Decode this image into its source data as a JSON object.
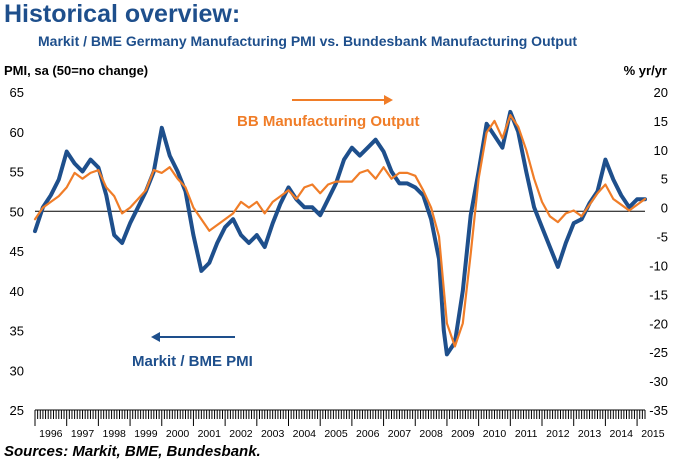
{
  "header": {
    "title": "Historical overview:",
    "subtitle": "Markit / BME Germany Manufacturing PMI vs. Bundesbank Manufacturing Output"
  },
  "footer": {
    "source": "Sources: Markit, BME, Bundesbank."
  },
  "colors": {
    "pmi": "#1e4f8c",
    "output": "#f07d28",
    "title": "#1e4f8c"
  },
  "chart_data": {
    "type": "line",
    "title": "Markit / BME Germany Manufacturing PMI vs. Bundesbank Manufacturing Output",
    "ylabel_left": "PMI, sa (50=no change)",
    "ylabel_right": "% yr/yr",
    "ylim_left": [
      25,
      65
    ],
    "ylim_right": [
      -35,
      20
    ],
    "yticks_left": [
      25,
      30,
      35,
      40,
      45,
      50,
      55,
      60,
      65
    ],
    "yticks_right": [
      -35,
      -30,
      -25,
      -20,
      -15,
      -10,
      -5,
      0,
      5,
      10,
      15,
      20
    ],
    "x_labels": [
      "1996",
      "1997",
      "1998",
      "1999",
      "2000",
      "2001",
      "2002",
      "2003",
      "2004",
      "2005",
      "2006",
      "2007",
      "2008",
      "2009",
      "2010",
      "2011",
      "2012",
      "2013",
      "2014",
      "2015"
    ],
    "x_range": [
      1996.0,
      2015.25
    ],
    "reference_line": {
      "axis": "left",
      "value": 50
    },
    "series": [
      {
        "name": "Markit / BME PMI",
        "axis": "left",
        "label": "Markit / BME PMI",
        "arrow": "left",
        "x": [
          1996.0,
          1996.25,
          1996.5,
          1996.75,
          1997.0,
          1997.25,
          1997.5,
          1997.75,
          1998.0,
          1998.25,
          1998.5,
          1998.75,
          1999.0,
          1999.25,
          1999.5,
          1999.75,
          2000.0,
          2000.25,
          2000.5,
          2000.75,
          2001.0,
          2001.25,
          2001.5,
          2001.75,
          2002.0,
          2002.25,
          2002.5,
          2002.75,
          2003.0,
          2003.25,
          2003.5,
          2003.75,
          2004.0,
          2004.25,
          2004.5,
          2004.75,
          2005.0,
          2005.25,
          2005.5,
          2005.75,
          2006.0,
          2006.25,
          2006.5,
          2006.75,
          2007.0,
          2007.25,
          2007.5,
          2007.75,
          2008.0,
          2008.25,
          2008.5,
          2008.75,
          2008.9,
          2009.0,
          2009.25,
          2009.5,
          2009.75,
          2010.0,
          2010.25,
          2010.5,
          2010.75,
          2011.0,
          2011.25,
          2011.5,
          2011.75,
          2012.0,
          2012.25,
          2012.5,
          2012.75,
          2013.0,
          2013.25,
          2013.5,
          2013.75,
          2014.0,
          2014.25,
          2014.5,
          2014.75,
          2015.0,
          2015.25
        ],
        "values": [
          47.5,
          50.5,
          52.0,
          54.0,
          57.5,
          56.0,
          55.0,
          56.5,
          55.5,
          52.0,
          47.0,
          46.0,
          48.5,
          50.5,
          52.5,
          55.0,
          60.5,
          57.0,
          55.0,
          52.5,
          47.0,
          42.5,
          43.5,
          46.0,
          48.0,
          49.0,
          47.0,
          46.0,
          47.0,
          45.5,
          48.5,
          51.0,
          53.0,
          51.5,
          50.5,
          50.5,
          49.5,
          51.5,
          53.5,
          56.5,
          58.0,
          57.0,
          58.0,
          59.0,
          57.5,
          55.0,
          53.5,
          53.5,
          53.0,
          52.0,
          49.0,
          44.0,
          35.0,
          32.0,
          33.5,
          40.0,
          49.5,
          55.0,
          61.0,
          59.5,
          58.0,
          62.5,
          60.0,
          55.0,
          50.5,
          48.0,
          45.5,
          43.0,
          46.0,
          48.5,
          49.0,
          51.0,
          52.5,
          56.5,
          54.0,
          52.0,
          50.5,
          51.5,
          51.5
        ]
      },
      {
        "name": "BB Manufacturing Output",
        "axis": "right",
        "label": "BB Manufacturing Output",
        "arrow": "right",
        "x": [
          1996.0,
          1996.25,
          1996.5,
          1996.75,
          1997.0,
          1997.25,
          1997.5,
          1997.75,
          1998.0,
          1998.25,
          1998.5,
          1998.75,
          1999.0,
          1999.25,
          1999.5,
          1999.75,
          2000.0,
          2000.25,
          2000.5,
          2000.75,
          2001.0,
          2001.25,
          2001.5,
          2001.75,
          2002.0,
          2002.25,
          2002.5,
          2002.75,
          2003.0,
          2003.25,
          2003.5,
          2003.75,
          2004.0,
          2004.25,
          2004.5,
          2004.75,
          2005.0,
          2005.25,
          2005.5,
          2005.75,
          2006.0,
          2006.25,
          2006.5,
          2006.75,
          2007.0,
          2007.25,
          2007.5,
          2007.75,
          2008.0,
          2008.25,
          2008.5,
          2008.75,
          2009.0,
          2009.25,
          2009.5,
          2009.75,
          2010.0,
          2010.25,
          2010.5,
          2010.75,
          2011.0,
          2011.25,
          2011.5,
          2011.75,
          2012.0,
          2012.25,
          2012.5,
          2012.75,
          2013.0,
          2013.25,
          2013.5,
          2013.75,
          2014.0,
          2014.25,
          2014.5,
          2014.75,
          2015.0,
          2015.25
        ],
        "values": [
          -2.0,
          0.0,
          1.0,
          2.0,
          3.5,
          6.0,
          5.0,
          6.0,
          6.5,
          3.5,
          2.0,
          -1.0,
          0.0,
          1.5,
          3.0,
          6.5,
          6.0,
          7.0,
          5.0,
          3.5,
          0.0,
          -2.0,
          -4.0,
          -3.0,
          -2.0,
          -1.0,
          1.0,
          0.0,
          1.0,
          -1.0,
          1.0,
          2.0,
          3.0,
          1.5,
          3.5,
          4.0,
          2.5,
          4.0,
          4.5,
          4.5,
          4.5,
          6.0,
          6.5,
          5.0,
          7.0,
          5.0,
          6.0,
          6.0,
          5.5,
          3.0,
          0.0,
          -5.0,
          -20.0,
          -24.0,
          -20.0,
          -8.0,
          5.0,
          13.0,
          15.0,
          12.0,
          16.0,
          14.0,
          10.0,
          5.0,
          1.0,
          -1.5,
          -2.5,
          -1.0,
          -0.5,
          -1.5,
          0.5,
          2.5,
          4.0,
          1.5,
          0.5,
          -0.5,
          0.5,
          1.5
        ]
      }
    ]
  }
}
